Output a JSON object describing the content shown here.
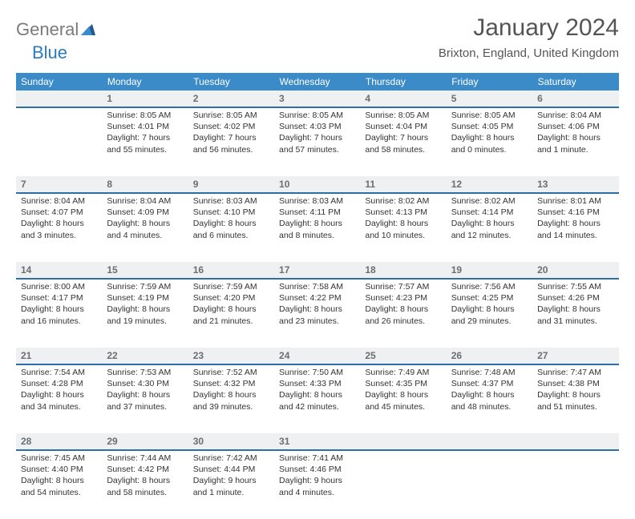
{
  "logo": {
    "part1": "General",
    "part2": "Blue"
  },
  "title": "January 2024",
  "location": "Brixton, England, United Kingdom",
  "colors": {
    "header_bg": "#3b8bc9",
    "header_text": "#ffffff",
    "daynum_bg": "#eef0f1",
    "daynum_text": "#6a6f73",
    "daynum_border": "#2b6ea8",
    "body_text": "#333333",
    "logo_gray": "#7a7a7a",
    "logo_blue": "#2b7bbf"
  },
  "day_headers": [
    "Sunday",
    "Monday",
    "Tuesday",
    "Wednesday",
    "Thursday",
    "Friday",
    "Saturday"
  ],
  "weeks": [
    {
      "nums": [
        "",
        "1",
        "2",
        "3",
        "4",
        "5",
        "6"
      ],
      "cells": [
        {
          "lines": []
        },
        {
          "lines": [
            "Sunrise: 8:05 AM",
            "Sunset: 4:01 PM",
            "Daylight: 7 hours",
            "and 55 minutes."
          ]
        },
        {
          "lines": [
            "Sunrise: 8:05 AM",
            "Sunset: 4:02 PM",
            "Daylight: 7 hours",
            "and 56 minutes."
          ]
        },
        {
          "lines": [
            "Sunrise: 8:05 AM",
            "Sunset: 4:03 PM",
            "Daylight: 7 hours",
            "and 57 minutes."
          ]
        },
        {
          "lines": [
            "Sunrise: 8:05 AM",
            "Sunset: 4:04 PM",
            "Daylight: 7 hours",
            "and 58 minutes."
          ]
        },
        {
          "lines": [
            "Sunrise: 8:05 AM",
            "Sunset: 4:05 PM",
            "Daylight: 8 hours",
            "and 0 minutes."
          ]
        },
        {
          "lines": [
            "Sunrise: 8:04 AM",
            "Sunset: 4:06 PM",
            "Daylight: 8 hours",
            "and 1 minute."
          ]
        }
      ]
    },
    {
      "nums": [
        "7",
        "8",
        "9",
        "10",
        "11",
        "12",
        "13"
      ],
      "cells": [
        {
          "lines": [
            "Sunrise: 8:04 AM",
            "Sunset: 4:07 PM",
            "Daylight: 8 hours",
            "and 3 minutes."
          ]
        },
        {
          "lines": [
            "Sunrise: 8:04 AM",
            "Sunset: 4:09 PM",
            "Daylight: 8 hours",
            "and 4 minutes."
          ]
        },
        {
          "lines": [
            "Sunrise: 8:03 AM",
            "Sunset: 4:10 PM",
            "Daylight: 8 hours",
            "and 6 minutes."
          ]
        },
        {
          "lines": [
            "Sunrise: 8:03 AM",
            "Sunset: 4:11 PM",
            "Daylight: 8 hours",
            "and 8 minutes."
          ]
        },
        {
          "lines": [
            "Sunrise: 8:02 AM",
            "Sunset: 4:13 PM",
            "Daylight: 8 hours",
            "and 10 minutes."
          ]
        },
        {
          "lines": [
            "Sunrise: 8:02 AM",
            "Sunset: 4:14 PM",
            "Daylight: 8 hours",
            "and 12 minutes."
          ]
        },
        {
          "lines": [
            "Sunrise: 8:01 AM",
            "Sunset: 4:16 PM",
            "Daylight: 8 hours",
            "and 14 minutes."
          ]
        }
      ]
    },
    {
      "nums": [
        "14",
        "15",
        "16",
        "17",
        "18",
        "19",
        "20"
      ],
      "cells": [
        {
          "lines": [
            "Sunrise: 8:00 AM",
            "Sunset: 4:17 PM",
            "Daylight: 8 hours",
            "and 16 minutes."
          ]
        },
        {
          "lines": [
            "Sunrise: 7:59 AM",
            "Sunset: 4:19 PM",
            "Daylight: 8 hours",
            "and 19 minutes."
          ]
        },
        {
          "lines": [
            "Sunrise: 7:59 AM",
            "Sunset: 4:20 PM",
            "Daylight: 8 hours",
            "and 21 minutes."
          ]
        },
        {
          "lines": [
            "Sunrise: 7:58 AM",
            "Sunset: 4:22 PM",
            "Daylight: 8 hours",
            "and 23 minutes."
          ]
        },
        {
          "lines": [
            "Sunrise: 7:57 AM",
            "Sunset: 4:23 PM",
            "Daylight: 8 hours",
            "and 26 minutes."
          ]
        },
        {
          "lines": [
            "Sunrise: 7:56 AM",
            "Sunset: 4:25 PM",
            "Daylight: 8 hours",
            "and 29 minutes."
          ]
        },
        {
          "lines": [
            "Sunrise: 7:55 AM",
            "Sunset: 4:26 PM",
            "Daylight: 8 hours",
            "and 31 minutes."
          ]
        }
      ]
    },
    {
      "nums": [
        "21",
        "22",
        "23",
        "24",
        "25",
        "26",
        "27"
      ],
      "cells": [
        {
          "lines": [
            "Sunrise: 7:54 AM",
            "Sunset: 4:28 PM",
            "Daylight: 8 hours",
            "and 34 minutes."
          ]
        },
        {
          "lines": [
            "Sunrise: 7:53 AM",
            "Sunset: 4:30 PM",
            "Daylight: 8 hours",
            "and 37 minutes."
          ]
        },
        {
          "lines": [
            "Sunrise: 7:52 AM",
            "Sunset: 4:32 PM",
            "Daylight: 8 hours",
            "and 39 minutes."
          ]
        },
        {
          "lines": [
            "Sunrise: 7:50 AM",
            "Sunset: 4:33 PM",
            "Daylight: 8 hours",
            "and 42 minutes."
          ]
        },
        {
          "lines": [
            "Sunrise: 7:49 AM",
            "Sunset: 4:35 PM",
            "Daylight: 8 hours",
            "and 45 minutes."
          ]
        },
        {
          "lines": [
            "Sunrise: 7:48 AM",
            "Sunset: 4:37 PM",
            "Daylight: 8 hours",
            "and 48 minutes."
          ]
        },
        {
          "lines": [
            "Sunrise: 7:47 AM",
            "Sunset: 4:38 PM",
            "Daylight: 8 hours",
            "and 51 minutes."
          ]
        }
      ]
    },
    {
      "nums": [
        "28",
        "29",
        "30",
        "31",
        "",
        "",
        ""
      ],
      "cells": [
        {
          "lines": [
            "Sunrise: 7:45 AM",
            "Sunset: 4:40 PM",
            "Daylight: 8 hours",
            "and 54 minutes."
          ]
        },
        {
          "lines": [
            "Sunrise: 7:44 AM",
            "Sunset: 4:42 PM",
            "Daylight: 8 hours",
            "and 58 minutes."
          ]
        },
        {
          "lines": [
            "Sunrise: 7:42 AM",
            "Sunset: 4:44 PM",
            "Daylight: 9 hours",
            "and 1 minute."
          ]
        },
        {
          "lines": [
            "Sunrise: 7:41 AM",
            "Sunset: 4:46 PM",
            "Daylight: 9 hours",
            "and 4 minutes."
          ]
        },
        {
          "lines": []
        },
        {
          "lines": []
        },
        {
          "lines": []
        }
      ]
    }
  ]
}
